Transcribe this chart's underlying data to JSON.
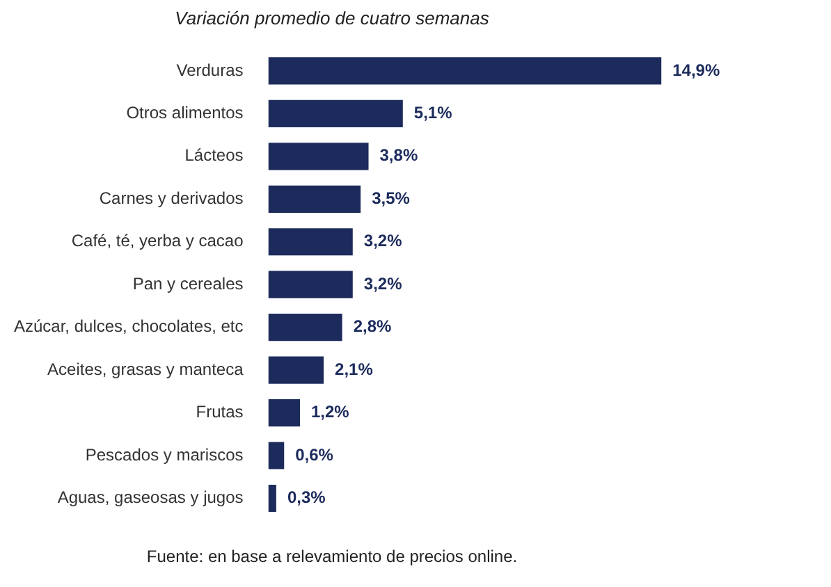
{
  "chart_data": {
    "type": "bar",
    "orientation": "horizontal",
    "title": "Variación promedio de cuatro semanas",
    "categories": [
      "Verduras",
      "Otros alimentos",
      "Lácteos",
      "Carnes y derivados",
      "Café, té, yerba y cacao",
      "Pan y cereales",
      "Azúcar, dulces, chocolates, etc",
      "Aceites, grasas y manteca",
      "Frutas",
      "Pescados y mariscos",
      "Aguas, gaseosas y jugos"
    ],
    "values": [
      14.9,
      5.1,
      3.8,
      3.5,
      3.2,
      3.2,
      2.8,
      2.1,
      1.2,
      0.6,
      0.3
    ],
    "value_labels": [
      "14,9%",
      "5,1%",
      "3,8%",
      "3,5%",
      "3,2%",
      "3,2%",
      "2,8%",
      "2,1%",
      "1,2%",
      "0,6%",
      "0,3%"
    ],
    "color": "#1c2b5c",
    "legend": false,
    "annotations": [
      "Fuente: en base a relevamiento de precios online."
    ]
  }
}
